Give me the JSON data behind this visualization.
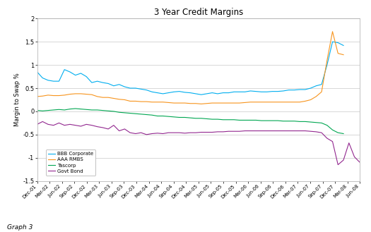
{
  "title": "3 Year Credit Margins",
  "ylabel": "Margin to Swap %",
  "footer": "Graph 3",
  "ylim": [
    -1.5,
    2.0
  ],
  "yticks": [
    -1.5,
    -1.0,
    -0.5,
    0.0,
    0.5,
    1.0,
    1.5,
    2.0
  ],
  "x_labels": [
    "Dec-01",
    "Mar-02",
    "Jun-02",
    "Sep-02",
    "Dec-02",
    "Mar-03",
    "Jun-03",
    "Sep-03",
    "Dec-03",
    "Mar-04",
    "Jun-04",
    "Sep-04",
    "Dec-04",
    "Mar-05",
    "Jun-05",
    "Sep-05",
    "Dec-05",
    "Mar-06",
    "Jun-06",
    "Sep-06",
    "Dec-06",
    "Mar-07",
    "Jun-07",
    "Sep-07",
    "Dec-07",
    "Mar-08",
    "Jun-08"
  ],
  "legend_labels": [
    "BBB Corporate",
    "AAA RMBS",
    "Tascorp",
    "Govt Bond"
  ],
  "line_colors": [
    "#00AEEF",
    "#F7941D",
    "#00A651",
    "#92278F"
  ],
  "background": "#FFFFFF",
  "grid_color": "#C8C8C8",
  "bbb_corporate": [
    0.85,
    0.72,
    0.67,
    0.65,
    0.65,
    0.9,
    0.85,
    0.78,
    0.82,
    0.75,
    0.62,
    0.65,
    0.62,
    0.6,
    0.55,
    0.58,
    0.53,
    0.5,
    0.5,
    0.48,
    0.46,
    0.42,
    0.4,
    0.38,
    0.4,
    0.42,
    0.43,
    0.41,
    0.4,
    0.38,
    0.36,
    0.38,
    0.4,
    0.38,
    0.4,
    0.4,
    0.42,
    0.42,
    0.42,
    0.44,
    0.43,
    0.42,
    0.42,
    0.43,
    0.43,
    0.44,
    0.46,
    0.46,
    0.47,
    0.47,
    0.5,
    0.55,
    0.58,
    1.0,
    1.5,
    1.48,
    1.42
  ],
  "aaa_rmbs": [
    0.32,
    0.33,
    0.35,
    0.34,
    0.34,
    0.35,
    0.37,
    0.38,
    0.38,
    0.37,
    0.36,
    0.32,
    0.3,
    0.3,
    0.28,
    0.26,
    0.25,
    0.22,
    0.22,
    0.21,
    0.21,
    0.2,
    0.2,
    0.2,
    0.19,
    0.18,
    0.18,
    0.18,
    0.17,
    0.17,
    0.16,
    0.17,
    0.18,
    0.18,
    0.18,
    0.18,
    0.18,
    0.18,
    0.19,
    0.2,
    0.2,
    0.2,
    0.2,
    0.2,
    0.2,
    0.2,
    0.2,
    0.2,
    0.2,
    0.22,
    0.25,
    0.32,
    0.42,
    1.1,
    1.72,
    1.25,
    1.22
  ],
  "tascorp": [
    0.02,
    0.01,
    0.02,
    0.03,
    0.04,
    0.03,
    0.05,
    0.06,
    0.05,
    0.04,
    0.03,
    0.03,
    0.02,
    0.01,
    0.0,
    -0.02,
    -0.03,
    -0.04,
    -0.05,
    -0.06,
    -0.07,
    -0.08,
    -0.1,
    -0.1,
    -0.11,
    -0.12,
    -0.13,
    -0.13,
    -0.14,
    -0.15,
    -0.15,
    -0.16,
    -0.17,
    -0.17,
    -0.18,
    -0.18,
    -0.18,
    -0.19,
    -0.19,
    -0.19,
    -0.19,
    -0.2,
    -0.2,
    -0.2,
    -0.2,
    -0.21,
    -0.21,
    -0.21,
    -0.22,
    -0.22,
    -0.23,
    -0.24,
    -0.25,
    -0.3,
    -0.4,
    -0.46,
    -0.48
  ],
  "govt_bond": [
    -0.28,
    -0.22,
    -0.28,
    -0.3,
    -0.25,
    -0.3,
    -0.28,
    -0.3,
    -0.32,
    -0.28,
    -0.3,
    -0.33,
    -0.35,
    -0.38,
    -0.3,
    -0.42,
    -0.38,
    -0.46,
    -0.48,
    -0.46,
    -0.5,
    -0.48,
    -0.47,
    -0.48,
    -0.46,
    -0.46,
    -0.46,
    -0.47,
    -0.46,
    -0.46,
    -0.45,
    -0.45,
    -0.45,
    -0.44,
    -0.44,
    -0.43,
    -0.43,
    -0.43,
    -0.42,
    -0.42,
    -0.42,
    -0.42,
    -0.42,
    -0.42,
    -0.42,
    -0.42,
    -0.42,
    -0.42,
    -0.42,
    -0.42,
    -0.43,
    -0.44,
    -0.46,
    -0.58,
    -0.65,
    -1.15,
    -1.05,
    -0.68,
    -0.98,
    -1.1
  ]
}
